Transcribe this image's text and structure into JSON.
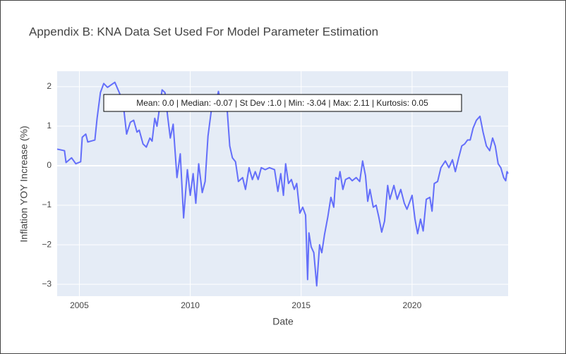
{
  "chart_data": {
    "type": "line",
    "title": "Appendix B: KNA Data Set Used For Model Parameter Estimation",
    "x_label": "Date",
    "y_label": "Inflation YOY Increase (%)",
    "annotation": "Mean: 0.0 | Median: -0.07 | St Dev :1.0 | Min: -3.04 | Max: 2.11 | Kurtosis: 0.05",
    "x": [
      2004.0,
      2004.33,
      2004.4,
      2004.65,
      2004.84,
      2005.06,
      2005.13,
      2005.29,
      2005.38,
      2005.7,
      2005.8,
      2005.95,
      2006.1,
      2006.27,
      2006.6,
      2006.8,
      2006.97,
      2007.13,
      2007.3,
      2007.45,
      2007.6,
      2007.7,
      2007.87,
      2008.02,
      2008.18,
      2008.28,
      2008.4,
      2008.5,
      2008.73,
      2008.86,
      2008.98,
      2009.1,
      2009.23,
      2009.4,
      2009.55,
      2009.7,
      2009.87,
      2010.0,
      2010.13,
      2010.25,
      2010.38,
      2010.54,
      2010.67,
      2010.8,
      2010.95,
      2011.1,
      2011.27,
      2011.43,
      2011.66,
      2011.78,
      2011.9,
      2012.04,
      2012.17,
      2012.36,
      2012.49,
      2012.65,
      2012.8,
      2012.93,
      2013.06,
      2013.2,
      2013.38,
      2013.57,
      2013.8,
      2013.95,
      2014.08,
      2014.2,
      2014.3,
      2014.43,
      2014.56,
      2014.69,
      2014.8,
      2014.94,
      2015.07,
      2015.2,
      2015.29,
      2015.35,
      2015.45,
      2015.57,
      2015.7,
      2015.83,
      2015.93,
      2016.05,
      2016.2,
      2016.34,
      2016.47,
      2016.56,
      2016.69,
      2016.75,
      2016.88,
      2017.0,
      2017.17,
      2017.3,
      2017.48,
      2017.64,
      2017.77,
      2017.9,
      2018.0,
      2018.1,
      2018.25,
      2018.38,
      2018.5,
      2018.63,
      2018.76,
      2018.9,
      2019.0,
      2019.18,
      2019.33,
      2019.49,
      2019.65,
      2019.77,
      2019.87,
      2020.0,
      2020.13,
      2020.25,
      2020.38,
      2020.5,
      2020.64,
      2020.8,
      2020.9,
      2021.0,
      2021.15,
      2021.3,
      2021.5,
      2021.66,
      2021.82,
      2021.95,
      2022.1,
      2022.24,
      2022.37,
      2022.5,
      2022.62,
      2022.75,
      2022.9,
      2023.06,
      2023.2,
      2023.35,
      2023.5,
      2023.63,
      2023.75,
      2023.88,
      2024.0,
      2024.13,
      2024.22,
      2024.28,
      2024.33
    ],
    "series": [
      {
        "name": "Inflation",
        "color": "#636efa",
        "values": [
          0.42,
          0.38,
          0.08,
          0.2,
          0.05,
          0.1,
          0.72,
          0.8,
          0.6,
          0.65,
          1.2,
          1.85,
          2.08,
          1.98,
          2.11,
          1.85,
          1.6,
          0.8,
          1.1,
          1.15,
          0.85,
          0.9,
          0.55,
          0.47,
          0.7,
          0.62,
          1.2,
          1.0,
          1.92,
          1.85,
          1.25,
          0.7,
          1.05,
          -0.3,
          0.3,
          -1.32,
          -0.1,
          -0.75,
          -0.2,
          -0.95,
          0.05,
          -0.68,
          -0.4,
          0.75,
          1.4,
          1.45,
          1.88,
          1.45,
          1.45,
          0.5,
          0.2,
          0.1,
          -0.4,
          -0.3,
          -0.6,
          -0.05,
          -0.35,
          -0.15,
          -0.35,
          -0.05,
          -0.1,
          -0.05,
          -0.1,
          -0.65,
          -0.2,
          -0.75,
          0.05,
          -0.45,
          -0.35,
          -0.6,
          -0.45,
          -1.2,
          -1.05,
          -1.25,
          -2.88,
          -1.7,
          -2.05,
          -2.2,
          -3.04,
          -2.0,
          -2.2,
          -1.75,
          -1.3,
          -0.8,
          -1.05,
          -0.3,
          -0.35,
          -0.15,
          -0.6,
          -0.35,
          -0.3,
          -0.38,
          -0.3,
          -0.4,
          0.12,
          -0.25,
          -0.9,
          -0.6,
          -1.05,
          -1.0,
          -1.3,
          -1.68,
          -1.4,
          -0.5,
          -0.85,
          -0.5,
          -0.85,
          -0.6,
          -0.95,
          -1.1,
          -0.95,
          -0.75,
          -1.35,
          -1.72,
          -1.35,
          -1.65,
          -0.85,
          -0.8,
          -1.15,
          -0.45,
          -0.4,
          -0.05,
          0.12,
          -0.05,
          0.15,
          -0.15,
          0.2,
          0.5,
          0.55,
          0.65,
          0.65,
          0.95,
          1.15,
          1.25,
          0.85,
          0.5,
          0.38,
          0.7,
          0.5,
          0.05,
          -0.05,
          -0.3,
          -0.38,
          -0.15,
          -0.2
        ]
      }
    ],
    "xlim": [
      2004.0,
      2024.33
    ],
    "xticks": [
      2005,
      2010,
      2015,
      2020
    ],
    "ylim": [
      -3.3,
      2.39
    ],
    "yticks": [
      {
        "value": -3,
        "label": "−3"
      },
      {
        "value": -2,
        "label": "−2"
      },
      {
        "value": -1,
        "label": "−1"
      },
      0,
      1,
      2
    ],
    "grid": true
  }
}
